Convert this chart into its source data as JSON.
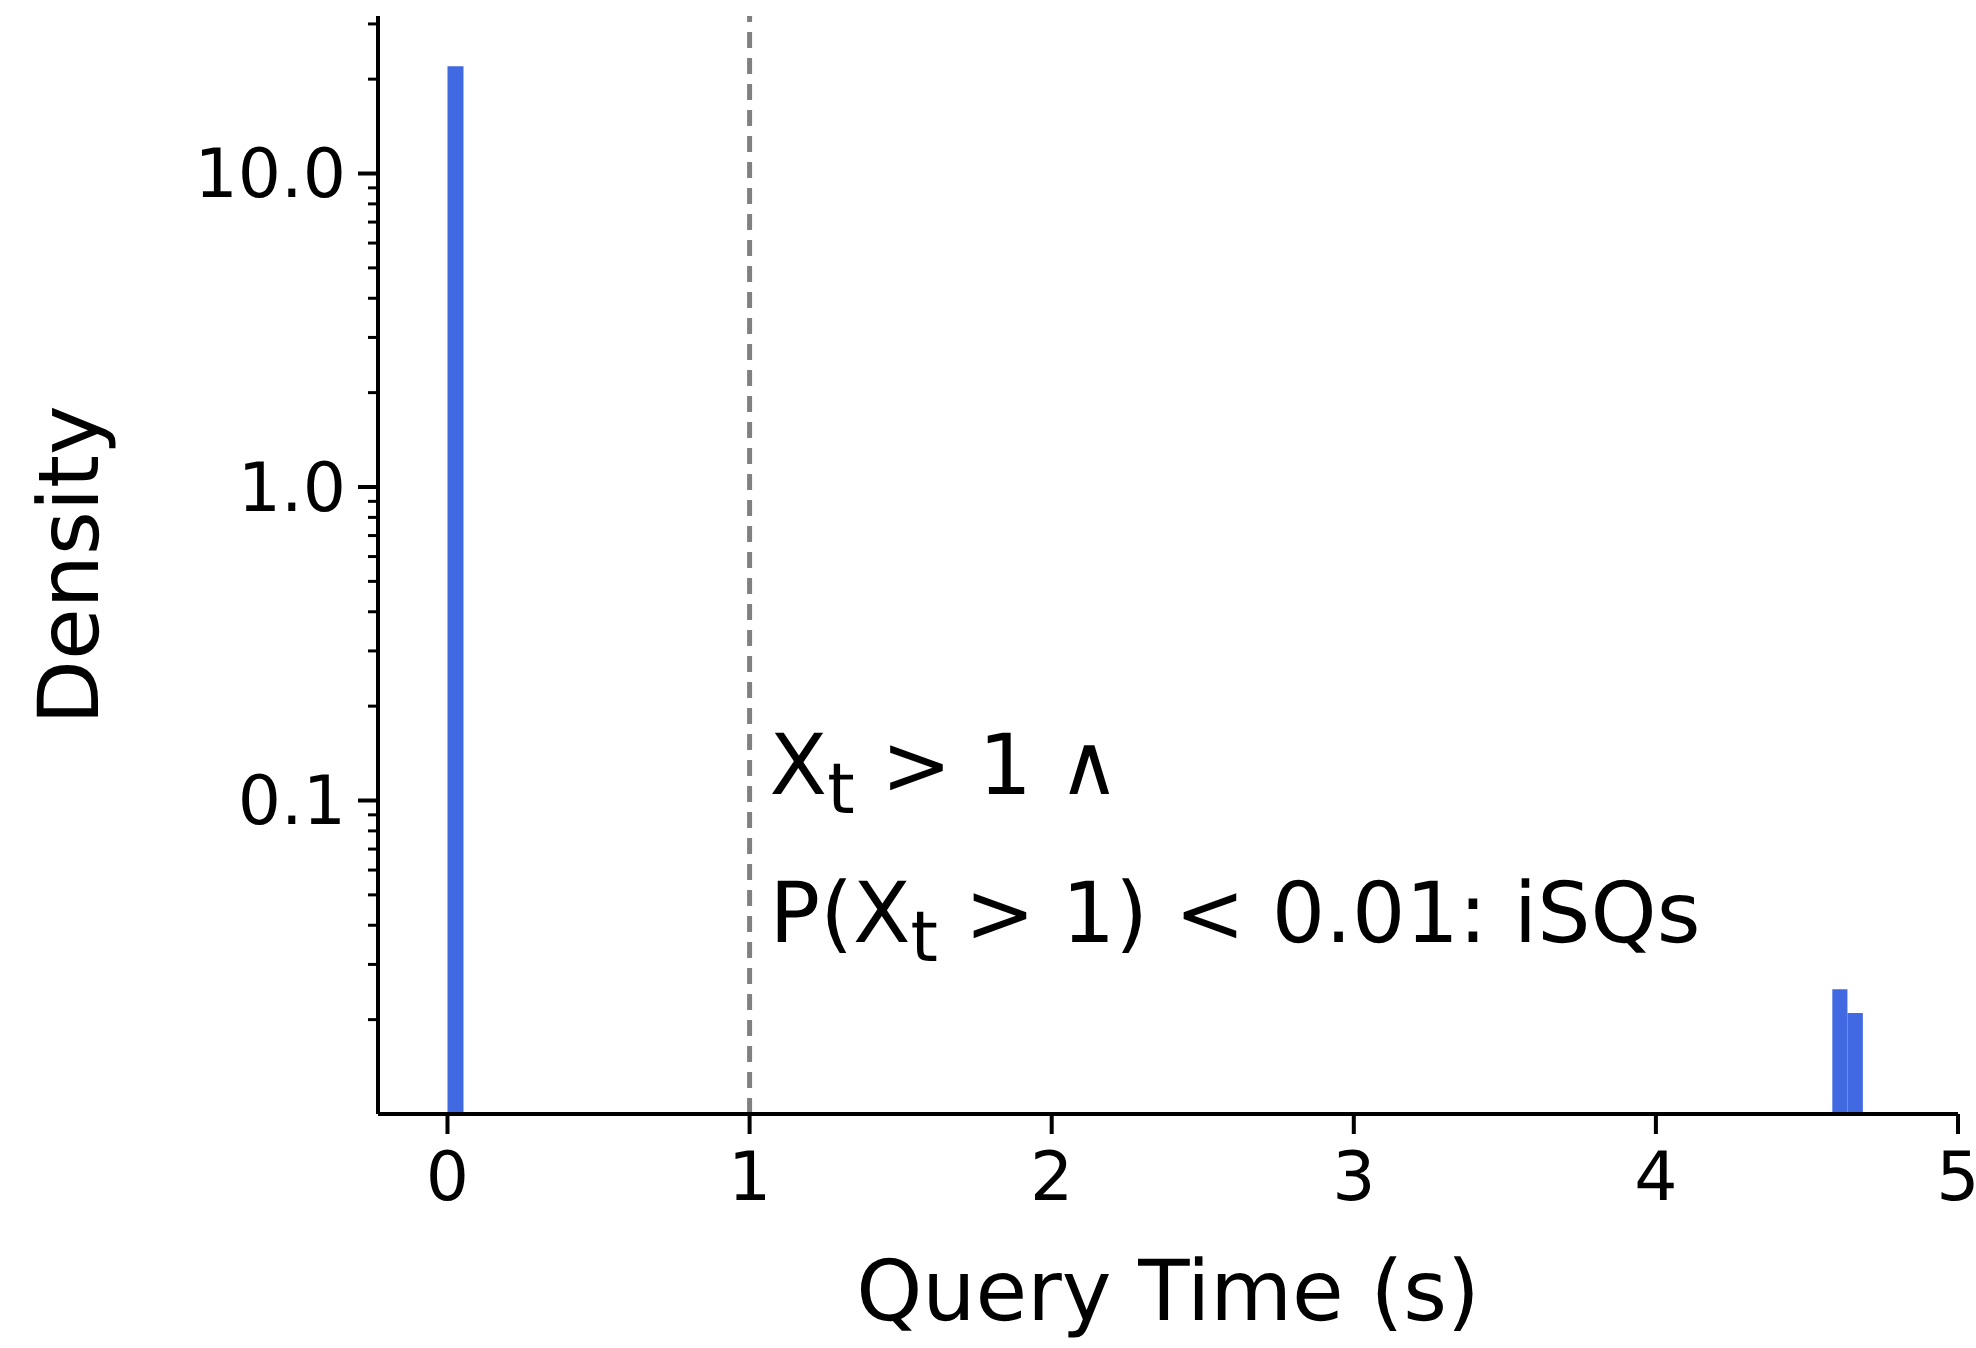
{
  "chart_data": {
    "type": "histogram",
    "xlabel": "Query Time (s)",
    "ylabel": "Density",
    "bins": [
      0,
      0.053,
      4.584,
      4.634,
      4.685
    ],
    "values": [
      22,
      null,
      0.025,
      0.021
    ],
    "color": "#4169e1",
    "log": "y",
    "xlim": [
      -0.23,
      5.0
    ],
    "xticks": [
      0,
      1,
      2,
      3,
      4,
      5
    ],
    "ylim": [
      0.01,
      31.8
    ],
    "yticks": [
      {
        "value": 0.02,
        "label": null
      },
      {
        "value": 0.03,
        "label": null
      },
      {
        "value": 0.04,
        "label": null
      },
      {
        "value": 0.05,
        "label": null
      },
      {
        "value": 0.06,
        "label": null
      },
      {
        "value": 0.07,
        "label": null
      },
      {
        "value": 0.08,
        "label": null
      },
      {
        "value": 0.09,
        "label": null
      },
      0.1,
      {
        "value": 0.2,
        "label": null
      },
      {
        "value": 0.3,
        "label": null
      },
      {
        "value": 0.4,
        "label": null
      },
      {
        "value": 0.5,
        "label": null
      },
      {
        "value": 0.6,
        "label": null
      },
      {
        "value": 0.7,
        "label": null
      },
      {
        "value": 0.8,
        "label": null
      },
      {
        "value": 0.9,
        "label": null
      },
      {
        "value": 1,
        "label": "1.0"
      },
      {
        "value": 2,
        "label": null
      },
      {
        "value": 3,
        "label": null
      },
      {
        "value": 4,
        "label": null
      },
      {
        "value": 5,
        "label": null
      },
      {
        "value": 6,
        "label": null
      },
      {
        "value": 7,
        "label": null
      },
      {
        "value": 8,
        "label": null
      },
      {
        "value": 9,
        "label": null
      },
      {
        "value": 10,
        "label": "10.0"
      },
      {
        "value": 20,
        "label": null
      },
      {
        "value": 30,
        "label": null
      }
    ],
    "ref_lines": [
      {
        "axis": "x",
        "value": 1,
        "label": "X$_{t}$ > 1 ∧\nP(X$_{t}$ > 1) < 0.01: iSQs",
        "color": "#808080",
        "line_style": "dashed"
      }
    ]
  }
}
